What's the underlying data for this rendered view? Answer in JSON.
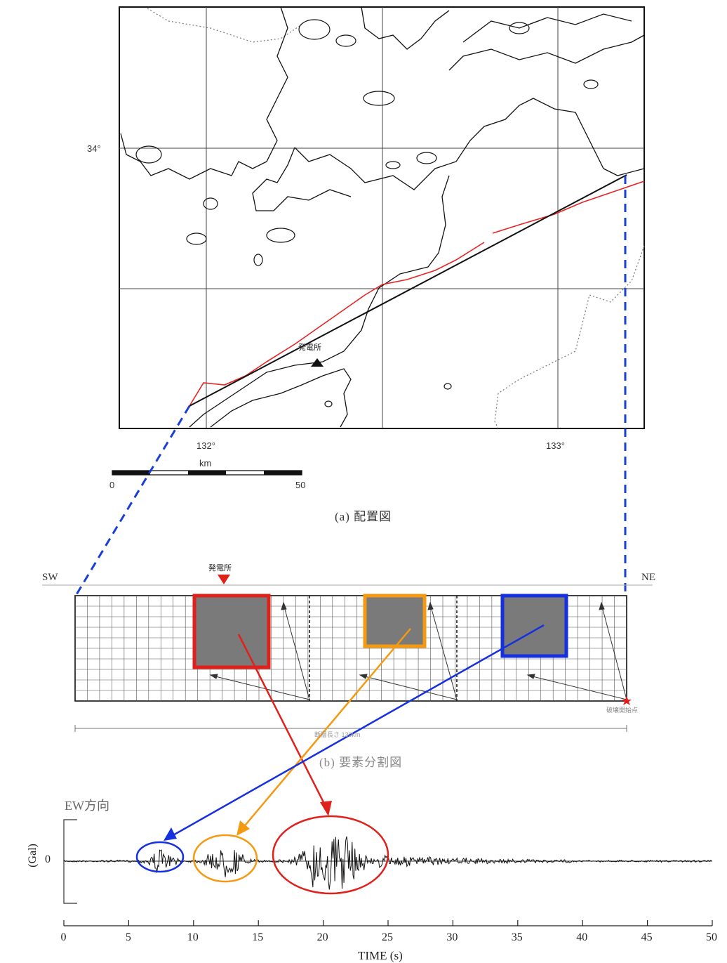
{
  "map": {
    "lat_label": "34°",
    "lon_labels": [
      "132°",
      "133°"
    ],
    "station_label": "発電所",
    "scale": {
      "unit": "km",
      "start": "0",
      "end": "50"
    },
    "caption": "(a) 配置図"
  },
  "fault_model": {
    "left_label": "SW",
    "right_label": "NE",
    "station_label": "発電所",
    "rupture_start_label": "破壊開始点",
    "length_label": "断層長さ 130km",
    "caption": "(b) 要素分割図"
  },
  "waveform": {
    "component_label": "EW方向",
    "y_axis_label": "(Gal)",
    "y_zero_label": "0",
    "x_axis_label": "TIME (s)",
    "x_ticks": [
      "0",
      "5",
      "10",
      "15",
      "20",
      "25",
      "30",
      "35",
      "40",
      "45",
      "50"
    ]
  },
  "colors": {
    "asperity_1": "#e0201a",
    "asperity_2": "#f39a12",
    "asperity_3": "#1630e0",
    "fault_trace": "#e82222",
    "dashed_link": "#1a3fd6"
  }
}
